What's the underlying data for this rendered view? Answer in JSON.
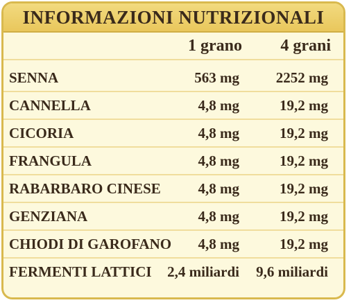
{
  "title": "INFORMAZIONI NUTRIZIONALI",
  "columns": [
    "1 grano",
    "4 grani"
  ],
  "rows": [
    {
      "name": "SENNA",
      "v1": "563 mg",
      "v2": "2252 mg"
    },
    {
      "name": "CANNELLA",
      "v1": "4,8 mg",
      "v2": "19,2 mg"
    },
    {
      "name": "CICORIA",
      "v1": "4,8 mg",
      "v2": "19,2 mg"
    },
    {
      "name": "FRANGULA",
      "v1": "4,8 mg",
      "v2": "19,2 mg"
    },
    {
      "name": "RABARBARO CINESE",
      "v1": "4,8 mg",
      "v2": "19,2 mg"
    },
    {
      "name": "GENZIANA",
      "v1": "4,8 mg",
      "v2": "19,2 mg"
    },
    {
      "name": "CHIODI DI GAROFANO",
      "v1": "4,8 mg",
      "v2": "19,2 mg"
    },
    {
      "name": "FERMENTI LATTICI",
      "v1": "2,4 miliardi",
      "v2": "9,6 miliardi"
    }
  ]
}
